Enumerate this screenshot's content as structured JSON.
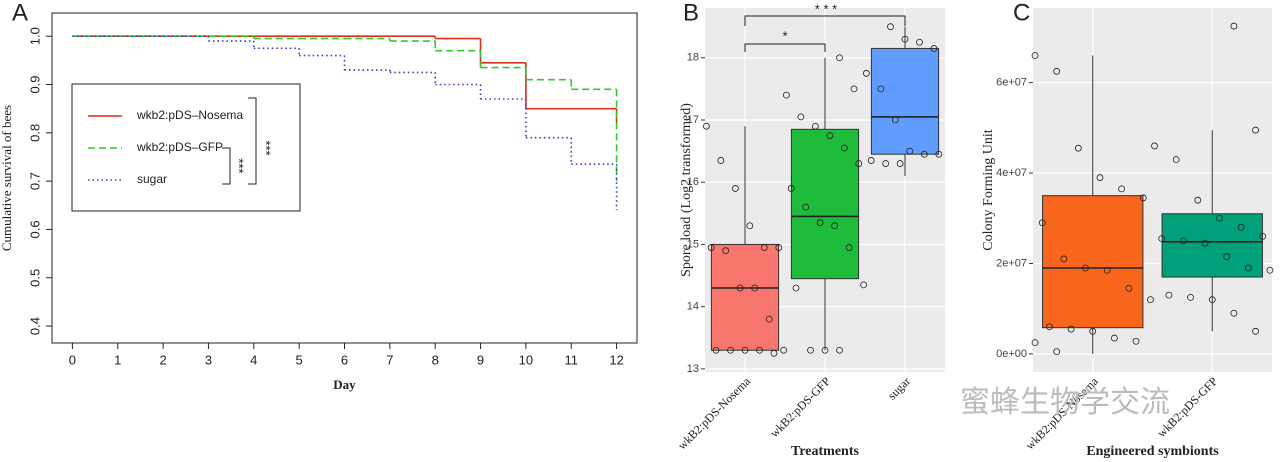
{
  "chart_data": [
    {
      "type": "step",
      "panel_label": "A",
      "xlabel": "Day",
      "ylabel": "Cumulative survival of bees",
      "x": [
        0,
        1,
        2,
        3,
        4,
        5,
        6,
        7,
        8,
        9,
        10,
        11,
        12
      ],
      "series": [
        {
          "name": "wkb2:pDS–Nosema",
          "color": "#d7301f",
          "dash": "solid",
          "values": [
            1,
            1,
            1,
            1,
            1,
            1,
            1,
            1,
            0.995,
            0.945,
            0.85,
            0.85,
            0.82
          ]
        },
        {
          "name": "wkb2:pDS–GFP",
          "color": "#2ecc2e",
          "dash": "dashed",
          "values": [
            1,
            1,
            1,
            1,
            0.995,
            0.995,
            0.995,
            0.99,
            0.97,
            0.935,
            0.91,
            0.89,
            0.7
          ]
        },
        {
          "name": "sugar",
          "color": "#3a3ab8",
          "dash": "dotted",
          "values": [
            1,
            1,
            1,
            0.99,
            0.975,
            0.96,
            0.93,
            0.925,
            0.9,
            0.87,
            0.79,
            0.735,
            0.64
          ]
        }
      ],
      "xlim": [
        -0.45,
        12.45
      ],
      "xticks": [
        0,
        1,
        2,
        3,
        4,
        5,
        6,
        7,
        8,
        9,
        10,
        11,
        12
      ],
      "ylim": [
        0.365,
        1.048
      ],
      "yticks": [
        {
          "value": 0.4,
          "label": "0.4"
        },
        {
          "value": 0.5,
          "label": "0.5"
        },
        {
          "value": 0.6,
          "label": "0.6"
        },
        {
          "value": 0.7,
          "label": "0.7"
        },
        {
          "value": 0.8,
          "label": "0.8"
        },
        {
          "value": 0.9,
          "label": "0.9"
        },
        {
          "value": 1,
          "label": "1.0"
        }
      ],
      "annotations": [
        "***",
        "***"
      ]
    },
    {
      "type": "box",
      "panel_label": "B",
      "xlabel": "Treatments",
      "ylabel": "Spore load (Log2 transformed)",
      "categories": [
        "wkB2:pDS-Nosema",
        "wkB2:pDS-GFP",
        "sugar"
      ],
      "colors": [
        "#f8766d",
        "#1fbc3c",
        "#619cff"
      ],
      "boxes": [
        {
          "min": 13.3,
          "q1": 13.3,
          "median": 14.3,
          "q3": 15.0,
          "max": 16.9
        },
        {
          "min": 13.3,
          "q1": 14.45,
          "median": 15.45,
          "q3": 16.85,
          "max": 18.0
        },
        {
          "min": 16.1,
          "q1": 16.45,
          "median": 17.05,
          "q3": 18.15,
          "max": 18.5
        }
      ],
      "points": [
        [
          16.9,
          16.35,
          15.9,
          15.3,
          14.95,
          14.95,
          14.95,
          14.9,
          14.3,
          14.3,
          13.8,
          13.3,
          13.3,
          13.3,
          13.3,
          13.3,
          13.25
        ],
        [
          18.0,
          17.5,
          17.4,
          17.05,
          16.9,
          16.75,
          16.55,
          16.3,
          15.9,
          15.6,
          15.35,
          15.3,
          14.95,
          14.35,
          14.3,
          13.3,
          13.3,
          13.3
        ],
        [
          18.5,
          18.3,
          18.25,
          18.15,
          17.75,
          17.5,
          17.0,
          16.5,
          16.45,
          16.45,
          16.35,
          16.3,
          16.3
        ]
      ],
      "ylim": [
        12.95,
        18.8
      ],
      "yticks": [
        13,
        14,
        15,
        16,
        17,
        18
      ],
      "annotations": [
        "*",
        "* * *"
      ]
    },
    {
      "type": "box",
      "panel_label": "C",
      "xlabel": "Engineered symbionts",
      "ylabel": "Colony Forming Unit",
      "categories": [
        "wkB2:pDS-Nosema",
        "wkB2:pDS-GFP"
      ],
      "colors": [
        "#f8661e",
        "#00a07a"
      ],
      "boxes": [
        {
          "min": 0,
          "q1": 5800000,
          "median": 19000000,
          "q3": 35000000,
          "max": 66000000
        },
        {
          "min": 5000000,
          "q1": 17000000,
          "median": 24800000,
          "q3": 31000000,
          "max": 49500000
        }
      ],
      "points": [
        [
          66000000,
          62500000,
          45500000,
          39000000,
          36500000,
          34500000,
          29000000,
          21000000,
          19000000,
          18500000,
          14500000,
          12000000,
          6000000,
          5500000,
          5000000,
          3500000,
          2800000,
          2500000,
          500000
        ],
        [
          72500000,
          49500000,
          46000000,
          43000000,
          34000000,
          30000000,
          28000000,
          26000000,
          25500000,
          25000000,
          24500000,
          21500000,
          19000000,
          18500000,
          13000000,
          12500000,
          12000000,
          9000000,
          5000000
        ]
      ],
      "ylim": [
        -4000000,
        76500000
      ],
      "yticks": [
        {
          "value": 0,
          "label": "0e+00"
        },
        {
          "value": 20000000,
          "label": "2e+07"
        },
        {
          "value": 40000000,
          "label": "4e+07"
        },
        {
          "value": 60000000,
          "label": "6e+07"
        }
      ]
    }
  ],
  "watermark": "蜜蜂生物学交流"
}
